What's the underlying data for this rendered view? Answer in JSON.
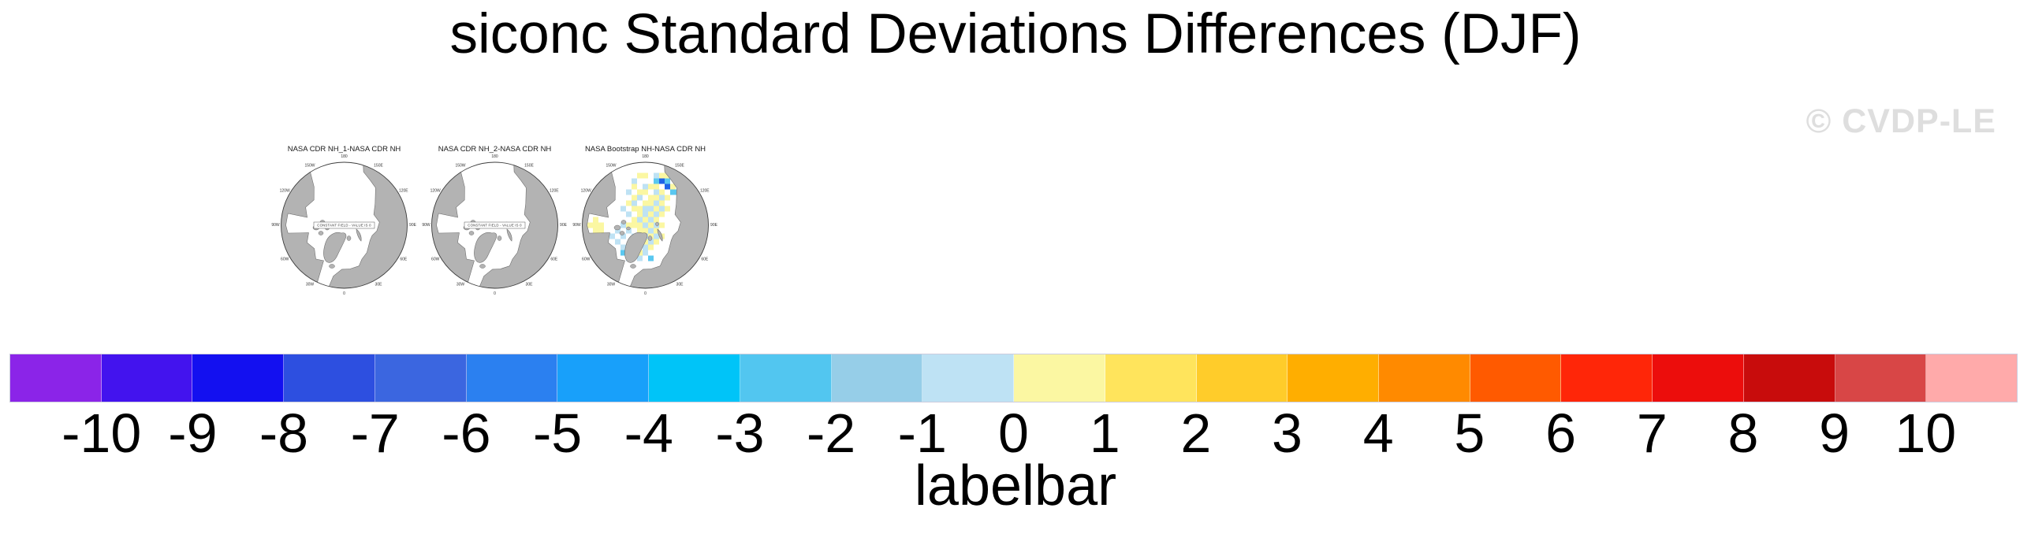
{
  "page": {
    "title": "siconc Standard Deviations Differences (DJF)",
    "watermark": "© CVDP-LE"
  },
  "maps": {
    "land_color": "#b3b3b3",
    "outline_color": "#6f6f6f",
    "rim_color": "#3c3c3c",
    "ring_label_color": "#333333",
    "constant_field_note": "CONSTANT FIELD - VALUE IS 0",
    "ring_labels": [
      {
        "angle": 0,
        "text": "180"
      },
      {
        "angle": 30,
        "text": "150E"
      },
      {
        "angle": 60,
        "text": "120E"
      },
      {
        "angle": 90,
        "text": "90E"
      },
      {
        "angle": 120,
        "text": "60E"
      },
      {
        "angle": 150,
        "text": "30E"
      },
      {
        "angle": 180,
        "text": "0"
      },
      {
        "angle": 210,
        "text": "30W"
      },
      {
        "angle": 240,
        "text": "60W"
      },
      {
        "angle": 270,
        "text": "90W"
      },
      {
        "angle": 300,
        "text": "120W"
      },
      {
        "angle": 330,
        "text": "150W"
      }
    ],
    "cell_colors": {
      "y": "#FBF7A2",
      "b": "#BEE2F4",
      "B": "#5AC8F0",
      "d": "#1E64E8"
    },
    "panels": [
      {
        "title": "NASA CDR NH_1-NASA CDR NH",
        "note": true,
        "cells": []
      },
      {
        "title": "NASA CDR NH_2-NASA CDR NH",
        "note": true,
        "cells": []
      },
      {
        "title": "NASA Bootstrap NH-NASA CDR NH",
        "note": false,
        "cells": [
          [
            -1,
            -9,
            "y"
          ],
          [
            0,
            -9,
            "y"
          ],
          [
            2,
            -9,
            "b"
          ],
          [
            3,
            -9,
            "y"
          ],
          [
            4,
            -9,
            "y"
          ],
          [
            -2,
            -8,
            "b"
          ],
          [
            2,
            -8,
            "B"
          ],
          [
            3,
            -8,
            "d"
          ],
          [
            4,
            -8,
            "B"
          ],
          [
            -2,
            -7,
            "y"
          ],
          [
            0,
            -7,
            "b"
          ],
          [
            1,
            -7,
            "y"
          ],
          [
            2,
            -7,
            "y"
          ],
          [
            4,
            -7,
            "d"
          ],
          [
            5,
            -7,
            "y"
          ],
          [
            -3,
            -6,
            "b"
          ],
          [
            -1,
            -6,
            "y"
          ],
          [
            0,
            -6,
            "y"
          ],
          [
            2,
            -6,
            "b"
          ],
          [
            3,
            -6,
            "y"
          ],
          [
            5,
            -6,
            "B"
          ],
          [
            6,
            -6,
            "B"
          ],
          [
            -2,
            -5,
            "y"
          ],
          [
            -1,
            -5,
            "b"
          ],
          [
            1,
            -5,
            "y"
          ],
          [
            2,
            -5,
            "y"
          ],
          [
            3,
            -5,
            "b"
          ],
          [
            4,
            -5,
            "y"
          ],
          [
            -3,
            -4,
            "y"
          ],
          [
            -2,
            -4,
            "b"
          ],
          [
            0,
            -4,
            "y"
          ],
          [
            1,
            -4,
            "y"
          ],
          [
            2,
            -4,
            "b"
          ],
          [
            3,
            -4,
            "y"
          ],
          [
            -4,
            -3,
            "b"
          ],
          [
            -2,
            -3,
            "y"
          ],
          [
            -1,
            -3,
            "y"
          ],
          [
            0,
            -3,
            "b"
          ],
          [
            1,
            -3,
            "b"
          ],
          [
            2,
            -3,
            "y"
          ],
          [
            3,
            -3,
            "b"
          ],
          [
            4,
            -3,
            "y"
          ],
          [
            -3,
            -2,
            "b"
          ],
          [
            -1,
            -2,
            "y"
          ],
          [
            0,
            -2,
            "b"
          ],
          [
            1,
            -2,
            "y"
          ],
          [
            2,
            -2,
            "b"
          ],
          [
            3,
            -2,
            "y"
          ],
          [
            -2,
            -1,
            "y"
          ],
          [
            -1,
            -1,
            "b"
          ],
          [
            0,
            -1,
            "y"
          ],
          [
            1,
            -1,
            "b"
          ],
          [
            2,
            -1,
            "y"
          ],
          [
            -10,
            0,
            "y"
          ],
          [
            -9,
            0,
            "y"
          ],
          [
            -8,
            0,
            "y"
          ],
          [
            -9,
            -1,
            "y"
          ],
          [
            -9,
            1,
            "y"
          ],
          [
            -8,
            1,
            "y"
          ],
          [
            -4,
            0,
            "b"
          ],
          [
            -3,
            0,
            "y"
          ],
          [
            -2,
            0,
            "y"
          ],
          [
            -1,
            0,
            "y"
          ],
          [
            0,
            0,
            "b"
          ],
          [
            1,
            0,
            "y"
          ],
          [
            2,
            0,
            "b"
          ],
          [
            3,
            0,
            "y"
          ],
          [
            -5,
            1,
            "b"
          ],
          [
            -3,
            1,
            "b"
          ],
          [
            -1,
            1,
            "y"
          ],
          [
            0,
            1,
            "y"
          ],
          [
            1,
            1,
            "b"
          ],
          [
            2,
            1,
            "y"
          ],
          [
            -6,
            2,
            "b"
          ],
          [
            -4,
            2,
            "b"
          ],
          [
            -2,
            2,
            "b"
          ],
          [
            -1,
            2,
            "y"
          ],
          [
            0,
            2,
            "b"
          ],
          [
            1,
            2,
            "y"
          ],
          [
            2,
            2,
            "b"
          ],
          [
            3,
            2,
            "y"
          ],
          [
            -5,
            3,
            "b"
          ],
          [
            -1,
            3,
            "b"
          ],
          [
            0,
            3,
            "y"
          ],
          [
            1,
            3,
            "b"
          ],
          [
            2,
            3,
            "y"
          ],
          [
            -4,
            4,
            "b"
          ],
          [
            -3,
            4,
            "b"
          ],
          [
            0,
            4,
            "b"
          ],
          [
            1,
            4,
            "y"
          ],
          [
            -4,
            5,
            "B"
          ],
          [
            -2,
            5,
            "b"
          ],
          [
            -1,
            5,
            "y"
          ],
          [
            0,
            5,
            "b"
          ],
          [
            -3,
            6,
            "b"
          ],
          [
            -1,
            6,
            "b"
          ],
          [
            1,
            6,
            "B"
          ]
        ]
      }
    ]
  },
  "labelbar": {
    "caption": "labelbar",
    "tick_labels": [
      "-10",
      "-9",
      "-8",
      "-7",
      "-6",
      "-5",
      "-4",
      "-3",
      "-2",
      "-1",
      "0",
      "1",
      "2",
      "3",
      "4",
      "5",
      "6",
      "7",
      "8",
      "9",
      "10"
    ],
    "box_colors": [
      "#8B24E8",
      "#4313EE",
      "#1310F0",
      "#2D4FE0",
      "#3B66E0",
      "#2B80F0",
      "#18A0FA",
      "#00C4F8",
      "#52C6F0",
      "#96CEE8",
      "#BEE2F4",
      "#FBF7A2",
      "#FFE45C",
      "#FFCC2A",
      "#FFAE00",
      "#FF8A00",
      "#FF5A00",
      "#FF2608",
      "#EC0D0C",
      "#C80C0C",
      "#D84646",
      "#FFAAAA"
    ]
  },
  "chart_data": {
    "type": "heatmap",
    "title": "siconc Standard Deviations Differences (DJF)",
    "variable": "siconc",
    "season": "DJF",
    "projection": "north-polar-stereographic",
    "panels": [
      {
        "title": "NASA CDR NH_1-NASA CDR NH",
        "note": "CONSTANT FIELD - VALUE IS 0"
      },
      {
        "title": "NASA CDR NH_2-NASA CDR NH",
        "note": "CONSTANT FIELD - VALUE IS 0"
      },
      {
        "title": "NASA Bootstrap NH-NASA CDR NH",
        "note": null
      }
    ],
    "colorbar": {
      "label": "labelbar",
      "orientation": "horizontal",
      "tick_values": [
        -10,
        -9,
        -8,
        -7,
        -6,
        -5,
        -4,
        -3,
        -2,
        -1,
        0,
        1,
        2,
        3,
        4,
        5,
        6,
        7,
        8,
        9,
        10
      ],
      "colors": [
        "#8B24E8",
        "#4313EE",
        "#1310F0",
        "#2D4FE0",
        "#3B66E0",
        "#2B80F0",
        "#18A0FA",
        "#00C4F8",
        "#52C6F0",
        "#96CEE8",
        "#BEE2F4",
        "#FBF7A2",
        "#FFE45C",
        "#FFCC2A",
        "#FFAE00",
        "#FF8A00",
        "#FF5A00",
        "#FF2608",
        "#EC0D0C",
        "#C80C0C",
        "#D84646",
        "#FFAAAA"
      ]
    },
    "watermark": "© CVDP-LE"
  }
}
